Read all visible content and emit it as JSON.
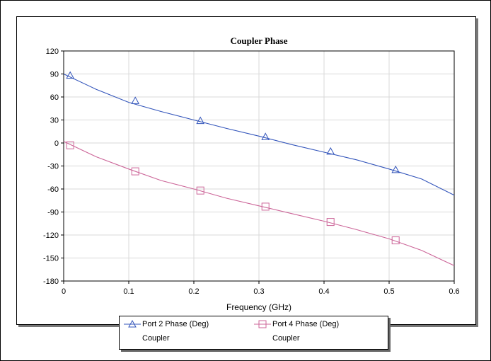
{
  "chart_data": {
    "type": "line",
    "title": "Coupler Phase",
    "xlabel": "Frequency (GHz)",
    "ylabel": "",
    "xlim": [
      0,
      0.6
    ],
    "ylim": [
      -180,
      120
    ],
    "xticks": [
      0,
      0.1,
      0.2,
      0.3,
      0.4,
      0.5,
      0.6
    ],
    "yticks": [
      120,
      90,
      60,
      30,
      0,
      -30,
      -60,
      -90,
      -120,
      -150,
      -180
    ],
    "grid": true,
    "legend_position": "bottom",
    "series": [
      {
        "name": "Port 2 Phase (Deg)",
        "group": "Coupler",
        "color": "#3355bb",
        "marker": "triangle",
        "x": [
          0.0,
          0.05,
          0.1,
          0.15,
          0.2,
          0.25,
          0.3,
          0.35,
          0.4,
          0.45,
          0.5,
          0.55,
          0.6
        ],
        "y": [
          90,
          70,
          53,
          41,
          30,
          19,
          9,
          -2,
          -12,
          -22,
          -34,
          -47,
          -68
        ],
        "markers_x": [
          0.01,
          0.11,
          0.21,
          0.31,
          0.41,
          0.51
        ],
        "markers_y": [
          88,
          55,
          29,
          8,
          -11,
          -35
        ]
      },
      {
        "name": "Port 4 Phase (Deg)",
        "group": "Coupler",
        "color": "#cc6699",
        "marker": "square",
        "x": [
          0.0,
          0.05,
          0.1,
          0.15,
          0.2,
          0.25,
          0.3,
          0.35,
          0.4,
          0.45,
          0.5,
          0.55,
          0.6
        ],
        "y": [
          2,
          -18,
          -34,
          -49,
          -60,
          -72,
          -82,
          -92,
          -102,
          -113,
          -125,
          -140,
          -160
        ],
        "markers_x": [
          0.01,
          0.11,
          0.21,
          0.31,
          0.41,
          0.51
        ],
        "markers_y": [
          -3,
          -37,
          -62,
          -83,
          -103,
          -127
        ]
      }
    ]
  }
}
